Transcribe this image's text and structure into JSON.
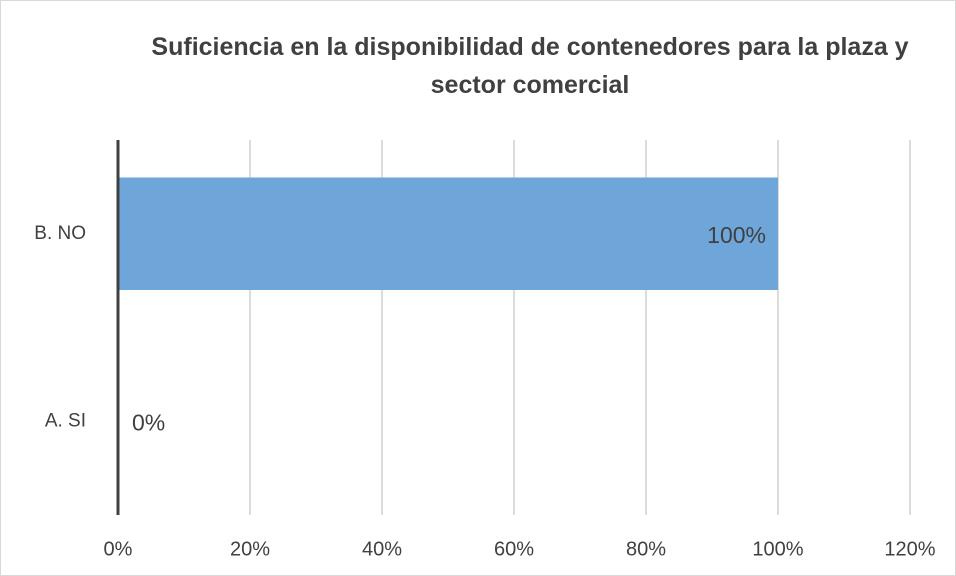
{
  "chart_data": {
    "type": "bar",
    "orientation": "horizontal",
    "title": "Suficiencia en la disponibilidad  de contenedores para la plaza y sector comercial",
    "categories": [
      "A. SI",
      "B. NO"
    ],
    "values": [
      0,
      100
    ],
    "value_labels": [
      "0%",
      "100%"
    ],
    "color": "#6fa6d9",
    "xlim": [
      0,
      120
    ],
    "xticks": [
      {
        "value": 0,
        "label": "0%"
      },
      {
        "value": 20,
        "label": "20%"
      },
      {
        "value": 40,
        "label": "40%"
      },
      {
        "value": 60,
        "label": "60%"
      },
      {
        "value": 80,
        "label": "80%"
      },
      {
        "value": 100,
        "label": "100%"
      },
      {
        "value": 120,
        "label": "120%"
      }
    ],
    "grid": true
  }
}
